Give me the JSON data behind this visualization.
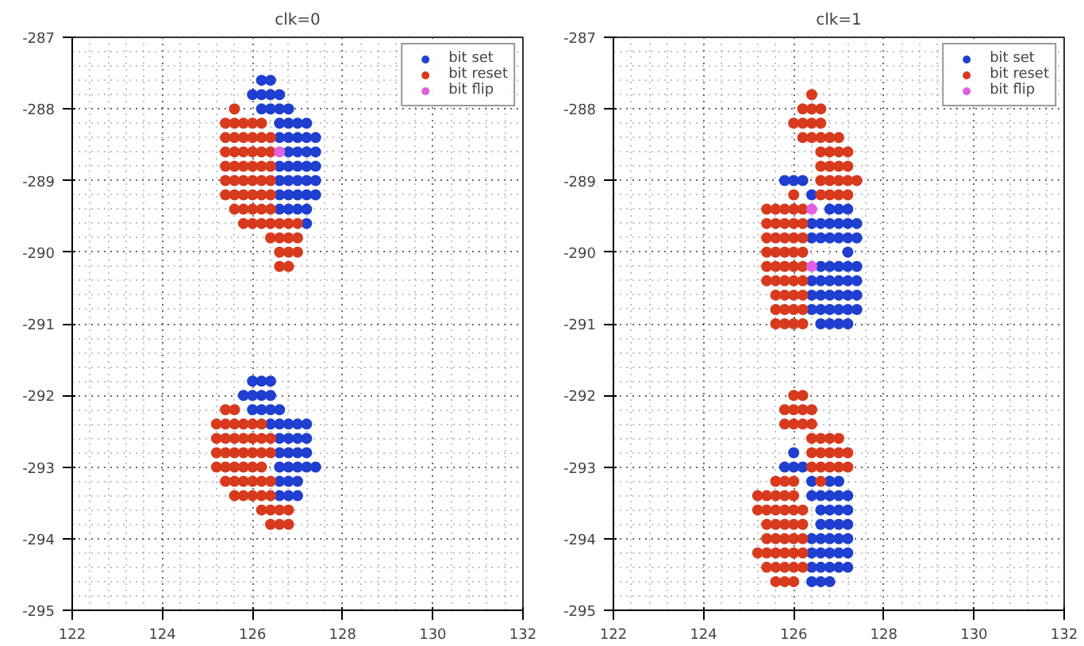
{
  "chart_data": [
    {
      "type": "scatter",
      "title": "clk=0",
      "xlim": [
        122,
        132
      ],
      "ylim": [
        -295,
        -287
      ],
      "xticks": [
        122,
        124,
        126,
        128,
        130,
        132
      ],
      "yticks": [
        -295,
        -294,
        -293,
        -292,
        -291,
        -290,
        -289,
        -288,
        -287
      ],
      "grid": true,
      "legend": "top right",
      "marker": "circle",
      "series": [
        {
          "name": "bit set",
          "color": "#1f3fd0",
          "x": [
            126.2,
            126.4,
            126.0,
            126.2,
            126.4,
            126.6,
            126.2,
            126.4,
            126.6,
            126.8,
            126.6,
            126.8,
            127.0,
            127.2,
            126.6,
            126.8,
            127.0,
            127.2,
            127.4,
            126.8,
            127.0,
            127.2,
            127.4,
            126.6,
            126.8,
            127.0,
            127.2,
            127.4,
            126.6,
            126.8,
            127.0,
            127.2,
            127.4,
            126.6,
            126.8,
            127.0,
            127.2,
            127.4,
            126.6,
            126.8,
            127.0,
            127.2,
            127.2,
            126.0,
            126.2,
            126.4,
            125.8,
            126.0,
            126.2,
            126.4,
            126.0,
            126.2,
            126.4,
            126.6,
            126.4,
            126.6,
            126.8,
            127.0,
            127.2,
            126.6,
            126.8,
            127.0,
            127.2,
            126.6,
            126.8,
            127.0,
            127.2,
            126.6,
            126.8,
            127.0,
            127.2,
            127.4,
            126.6,
            126.8,
            127.0,
            126.6,
            126.8,
            127.0
          ],
          "values": [
            -287.6,
            -287.6,
            -287.8,
            -287.8,
            -287.8,
            -287.8,
            -288.0,
            -288.0,
            -288.0,
            -288.0,
            -288.2,
            -288.2,
            -288.2,
            -288.2,
            -288.4,
            -288.4,
            -288.4,
            -288.4,
            -288.4,
            -288.6,
            -288.6,
            -288.6,
            -288.6,
            -288.8,
            -288.8,
            -288.8,
            -288.8,
            -288.8,
            -289.0,
            -289.0,
            -289.0,
            -289.0,
            -289.0,
            -289.2,
            -289.2,
            -289.2,
            -289.2,
            -289.2,
            -289.4,
            -289.4,
            -289.4,
            -289.4,
            -289.6,
            -291.8,
            -291.8,
            -291.8,
            -292.0,
            -292.0,
            -292.0,
            -292.0,
            -292.2,
            -292.2,
            -292.2,
            -292.2,
            -292.4,
            -292.4,
            -292.4,
            -292.4,
            -292.4,
            -292.6,
            -292.6,
            -292.6,
            -292.6,
            -292.8,
            -292.8,
            -292.8,
            -292.8,
            -293.0,
            -293.0,
            -293.0,
            -293.0,
            -293.0,
            -293.2,
            -293.2,
            -293.2,
            -293.4,
            -293.4,
            -293.4
          ]
        },
        {
          "name": "bit reset",
          "color": "#d83a1e",
          "x": [
            125.6,
            125.4,
            125.6,
            125.8,
            126.0,
            126.2,
            125.4,
            125.6,
            125.8,
            126.0,
            126.2,
            126.4,
            125.4,
            125.6,
            125.8,
            126.0,
            126.2,
            126.4,
            125.4,
            125.6,
            125.8,
            126.0,
            126.2,
            126.4,
            125.4,
            125.6,
            125.8,
            126.0,
            126.2,
            126.4,
            125.4,
            125.6,
            125.8,
            126.0,
            126.2,
            126.4,
            125.6,
            125.8,
            126.0,
            126.2,
            126.4,
            125.8,
            126.0,
            126.2,
            126.4,
            126.6,
            126.8,
            127.0,
            126.4,
            126.6,
            126.8,
            127.0,
            126.6,
            126.8,
            127.0,
            126.6,
            126.8,
            125.4,
            125.6,
            125.2,
            125.4,
            125.6,
            125.8,
            126.0,
            126.2,
            125.2,
            125.4,
            125.6,
            125.8,
            126.0,
            126.2,
            126.4,
            125.2,
            125.4,
            125.6,
            125.8,
            126.0,
            126.2,
            126.4,
            125.2,
            125.4,
            125.6,
            125.8,
            126.0,
            126.2,
            125.4,
            125.6,
            125.8,
            126.0,
            126.2,
            126.4,
            125.6,
            125.8,
            126.0,
            126.2,
            126.4,
            126.2,
            126.4,
            126.6,
            126.8,
            126.4,
            126.6,
            126.8
          ],
          "values": [
            -288.0,
            -288.2,
            -288.2,
            -288.2,
            -288.2,
            -288.2,
            -288.4,
            -288.4,
            -288.4,
            -288.4,
            -288.4,
            -288.4,
            -288.6,
            -288.6,
            -288.6,
            -288.6,
            -288.6,
            -288.6,
            -288.8,
            -288.8,
            -288.8,
            -288.8,
            -288.8,
            -288.8,
            -289.0,
            -289.0,
            -289.0,
            -289.0,
            -289.0,
            -289.0,
            -289.2,
            -289.2,
            -289.2,
            -289.2,
            -289.2,
            -289.2,
            -289.4,
            -289.4,
            -289.4,
            -289.4,
            -289.4,
            -289.6,
            -289.6,
            -289.6,
            -289.6,
            -289.6,
            -289.6,
            -289.6,
            -289.8,
            -289.8,
            -289.8,
            -289.8,
            -290.0,
            -290.0,
            -290.0,
            -290.2,
            -290.2,
            -292.2,
            -292.2,
            -292.4,
            -292.4,
            -292.4,
            -292.4,
            -292.4,
            -292.4,
            -292.6,
            -292.6,
            -292.6,
            -292.6,
            -292.6,
            -292.6,
            -292.6,
            -292.8,
            -292.8,
            -292.8,
            -292.8,
            -292.8,
            -292.8,
            -292.8,
            -293.0,
            -293.0,
            -293.0,
            -293.0,
            -293.0,
            -293.0,
            -293.2,
            -293.2,
            -293.2,
            -293.2,
            -293.2,
            -293.2,
            -293.4,
            -293.4,
            -293.4,
            -293.4,
            -293.4,
            -293.6,
            -293.6,
            -293.6,
            -293.6,
            -293.8,
            -293.8,
            -293.8
          ]
        },
        {
          "name": "bit flip",
          "color": "#e060e0",
          "x": [
            126.6
          ],
          "values": [
            -288.6
          ]
        }
      ]
    },
    {
      "type": "scatter",
      "title": "clk=1",
      "xlim": [
        122,
        132
      ],
      "ylim": [
        -295,
        -287
      ],
      "xticks": [
        122,
        124,
        126,
        128,
        130,
        132
      ],
      "yticks": [
        -295,
        -294,
        -293,
        -292,
        -291,
        -290,
        -289,
        -288,
        -287
      ],
      "grid": true,
      "legend": "top right",
      "marker": "circle",
      "series": [
        {
          "name": "bit set",
          "color": "#1f3fd0",
          "x": [
            125.8,
            126.0,
            126.2,
            126.4,
            126.8,
            127.0,
            127.2,
            126.4,
            126.6,
            126.8,
            127.0,
            127.2,
            127.4,
            126.4,
            126.6,
            126.8,
            127.0,
            127.2,
            127.4,
            127.2,
            126.6,
            126.8,
            127.0,
            127.2,
            127.4,
            126.4,
            126.6,
            126.8,
            127.0,
            127.2,
            127.4,
            126.4,
            126.6,
            126.8,
            127.0,
            127.2,
            127.4,
            126.4,
            126.6,
            126.8,
            127.0,
            127.2,
            127.4,
            126.6,
            126.8,
            127.0,
            127.2,
            126.0,
            125.8,
            126.0,
            126.2,
            126.4,
            126.8,
            127.0,
            126.4,
            126.6,
            126.8,
            127.0,
            127.2,
            126.6,
            126.8,
            127.0,
            127.2,
            126.6,
            126.8,
            127.0,
            127.2,
            126.4,
            126.6,
            126.8,
            127.0,
            127.2,
            126.4,
            126.6,
            126.8,
            127.0,
            127.2,
            126.4,
            126.6,
            126.8,
            127.0,
            127.2,
            126.4,
            126.6,
            126.8
          ],
          "values": [
            -289.0,
            -289.0,
            -289.0,
            -289.2,
            -289.4,
            -289.4,
            -289.4,
            -289.6,
            -289.6,
            -289.6,
            -289.6,
            -289.6,
            -289.6,
            -289.8,
            -289.8,
            -289.8,
            -289.8,
            -289.8,
            -289.8,
            -290.0,
            -290.2,
            -290.2,
            -290.2,
            -290.2,
            -290.2,
            -290.4,
            -290.4,
            -290.4,
            -290.4,
            -290.4,
            -290.4,
            -290.6,
            -290.6,
            -290.6,
            -290.6,
            -290.6,
            -290.6,
            -290.8,
            -290.8,
            -290.8,
            -290.8,
            -290.8,
            -290.8,
            -291.0,
            -291.0,
            -291.0,
            -291.0,
            -292.8,
            -293.0,
            -293.0,
            -293.0,
            -293.2,
            -293.2,
            -293.2,
            -293.4,
            -293.4,
            -293.4,
            -293.4,
            -293.4,
            -293.6,
            -293.6,
            -293.6,
            -293.6,
            -293.8,
            -293.8,
            -293.8,
            -293.8,
            -294.0,
            -294.0,
            -294.0,
            -294.0,
            -294.0,
            -294.2,
            -294.2,
            -294.2,
            -294.2,
            -294.2,
            -294.4,
            -294.4,
            -294.4,
            -294.4,
            -294.4,
            -294.6,
            -294.6,
            -294.6
          ]
        },
        {
          "name": "bit reset",
          "color": "#d83a1e",
          "x": [
            126.4,
            126.2,
            126.4,
            126.6,
            126.0,
            126.2,
            126.4,
            126.6,
            126.2,
            126.4,
            126.6,
            126.8,
            127.0,
            126.6,
            126.8,
            127.0,
            127.2,
            126.6,
            126.8,
            127.0,
            127.2,
            126.6,
            126.8,
            127.0,
            127.2,
            127.4,
            126.0,
            126.6,
            126.8,
            127.0,
            127.2,
            125.4,
            125.6,
            125.8,
            126.0,
            126.2,
            125.4,
            125.6,
            125.8,
            126.0,
            126.2,
            125.4,
            125.6,
            125.8,
            126.0,
            126.2,
            125.4,
            125.6,
            125.8,
            126.0,
            126.2,
            125.4,
            125.6,
            125.8,
            126.0,
            126.2,
            125.4,
            125.6,
            125.8,
            126.0,
            126.2,
            125.6,
            125.8,
            126.0,
            126.2,
            125.6,
            125.8,
            126.0,
            126.2,
            125.6,
            125.8,
            126.0,
            126.2,
            126.0,
            126.2,
            125.8,
            126.0,
            126.2,
            126.4,
            125.8,
            126.0,
            126.2,
            126.4,
            126.4,
            126.6,
            126.8,
            127.0,
            126.4,
            126.6,
            126.8,
            127.0,
            127.2,
            126.4,
            126.6,
            126.8,
            127.0,
            127.2,
            125.6,
            125.8,
            126.0,
            126.6,
            125.2,
            125.4,
            125.6,
            125.8,
            126.0,
            125.2,
            125.4,
            125.6,
            125.8,
            126.0,
            126.2,
            125.4,
            125.6,
            125.8,
            126.0,
            126.2,
            125.4,
            125.6,
            125.8,
            126.0,
            126.2,
            125.2,
            125.4,
            125.6,
            125.8,
            126.0,
            126.2,
            125.4,
            125.6,
            125.8,
            126.0,
            126.2,
            125.6,
            125.8,
            126.0
          ],
          "values": [
            -287.8,
            -288.0,
            -288.0,
            -288.0,
            -288.2,
            -288.2,
            -288.2,
            -288.2,
            -288.4,
            -288.4,
            -288.4,
            -288.4,
            -288.4,
            -288.6,
            -288.6,
            -288.6,
            -288.6,
            -288.8,
            -288.8,
            -288.8,
            -288.8,
            -289.0,
            -289.0,
            -289.0,
            -289.0,
            -289.0,
            -289.2,
            -289.2,
            -289.2,
            -289.2,
            -289.2,
            -289.4,
            -289.4,
            -289.4,
            -289.4,
            -289.4,
            -289.6,
            -289.6,
            -289.6,
            -289.6,
            -289.6,
            -289.8,
            -289.8,
            -289.8,
            -289.8,
            -289.8,
            -290.0,
            -290.0,
            -290.0,
            -290.0,
            -290.0,
            -290.2,
            -290.2,
            -290.2,
            -290.2,
            -290.2,
            -290.4,
            -290.4,
            -290.4,
            -290.4,
            -290.4,
            -290.6,
            -290.6,
            -290.6,
            -290.6,
            -290.8,
            -290.8,
            -290.8,
            -290.8,
            -291.0,
            -291.0,
            -291.0,
            -291.0,
            -292.0,
            -292.0,
            -292.2,
            -292.2,
            -292.2,
            -292.2,
            -292.4,
            -292.4,
            -292.4,
            -292.4,
            -292.6,
            -292.6,
            -292.6,
            -292.6,
            -292.8,
            -292.8,
            -292.8,
            -292.8,
            -292.8,
            -293.0,
            -293.0,
            -293.0,
            -293.0,
            -293.0,
            -293.2,
            -293.2,
            -293.2,
            -293.2,
            -293.4,
            -293.4,
            -293.4,
            -293.4,
            -293.4,
            -293.6,
            -293.6,
            -293.6,
            -293.6,
            -293.6,
            -293.6,
            -293.8,
            -293.8,
            -293.8,
            -293.8,
            -293.8,
            -294.0,
            -294.0,
            -294.0,
            -294.0,
            -294.0,
            -294.2,
            -294.2,
            -294.2,
            -294.2,
            -294.2,
            -294.2,
            -294.4,
            -294.4,
            -294.4,
            -294.4,
            -294.4,
            -294.6,
            -294.6,
            -294.6
          ]
        },
        {
          "name": "bit flip",
          "color": "#e060e0",
          "x": [
            126.4,
            126.4
          ],
          "values": [
            -289.4,
            -290.2
          ]
        }
      ]
    }
  ]
}
